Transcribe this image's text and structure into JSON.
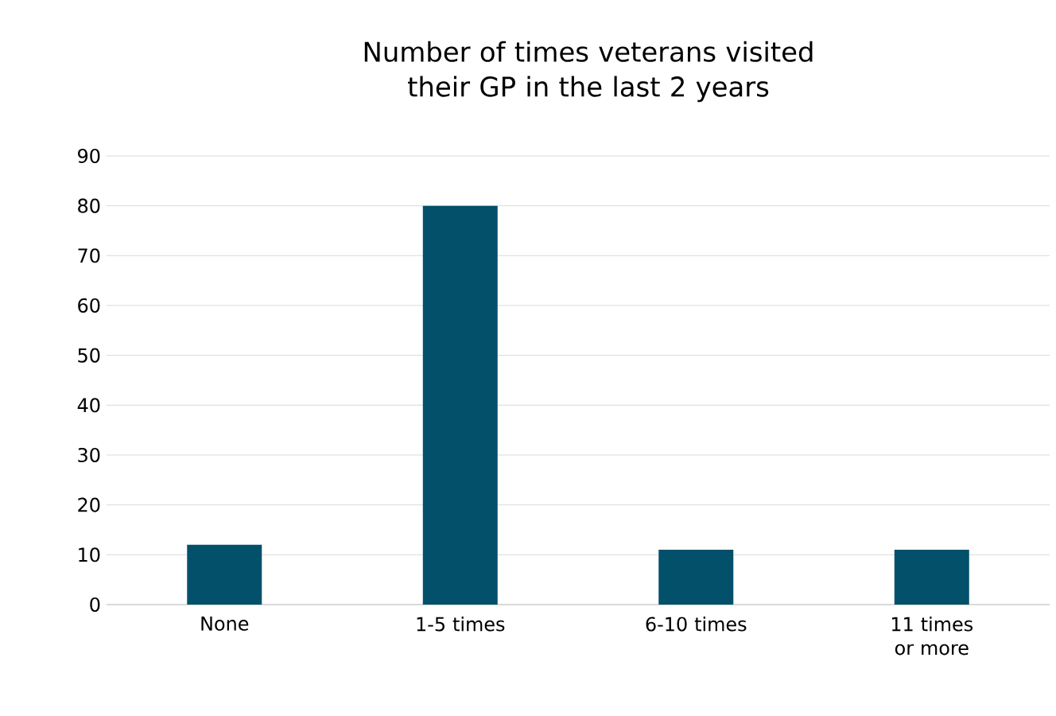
{
  "chart_data": {
    "type": "bar",
    "title": "Number of times veterans visited their GP in the last 2 years",
    "categories": [
      "None",
      "1-5 times",
      "6-10 times",
      "11 times or more"
    ],
    "values": [
      12,
      80,
      11,
      11
    ],
    "color": "#03506b",
    "ylim": [
      0,
      90
    ],
    "yticks": [
      0,
      10,
      20,
      30,
      40,
      50,
      60,
      70,
      80,
      90
    ],
    "grid": "y"
  }
}
